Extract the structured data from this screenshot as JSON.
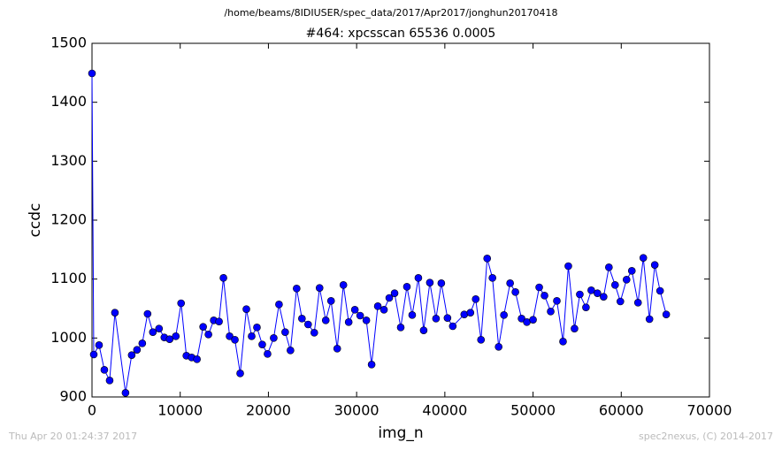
{
  "chart_data": {
    "type": "line",
    "suptitle": "/home/beams/8IDIUSER/spec_data/2017/Apr2017/jonghun20170418",
    "title": "#464: xpcsscan 65536 0.0005",
    "xlabel": "img_n",
    "ylabel": "ccdc",
    "footer_left": "Thu Apr 20 01:24:37 2017",
    "footer_right": "spec2nexus, (C) 2014-2017",
    "color": "#0000ff",
    "x": [
      0,
      200,
      800,
      1400,
      2000,
      2600,
      3800,
      4500,
      5100,
      5700,
      6300,
      6900,
      7600,
      8200,
      8800,
      9500,
      10100,
      10700,
      11300,
      11900,
      12600,
      13200,
      13800,
      14400,
      14900,
      15600,
      16200,
      16800,
      17500,
      18100,
      18700,
      19300,
      19900,
      20600,
      21200,
      21900,
      22500,
      23200,
      23800,
      24500,
      25200,
      25800,
      26500,
      27100,
      27800,
      28500,
      29100,
      29800,
      30400,
      31100,
      31700,
      32400,
      33100,
      33700,
      34300,
      35000,
      35700,
      36300,
      37000,
      37600,
      38300,
      39000,
      39600,
      40300,
      40900,
      42200,
      42900,
      43500,
      44100,
      44800,
      45400,
      46100,
      46700,
      47400,
      48000,
      48700,
      49300,
      50000,
      50700,
      51300,
      52000,
      52700,
      53400,
      54000,
      54700,
      55300,
      56000,
      56600,
      57300,
      58000,
      58600,
      59300,
      59900,
      60600,
      61200,
      61900,
      62500,
      63200,
      63800,
      64400,
      65100
    ],
    "values": [
      1449,
      972,
      988,
      946,
      928,
      1043,
      907,
      971,
      980,
      991,
      1041,
      1010,
      1016,
      1001,
      998,
      1003,
      1059,
      970,
      967,
      964,
      1019,
      1006,
      1030,
      1028,
      1102,
      1003,
      997,
      940,
      1049,
      1003,
      1018,
      989,
      973,
      1000,
      1057,
      1010,
      979,
      1084,
      1033,
      1023,
      1009,
      1085,
      1030,
      1063,
      982,
      1090,
      1027,
      1048,
      1038,
      1030,
      955,
      1054,
      1048,
      1068,
      1076,
      1018,
      1087,
      1039,
      1102,
      1013,
      1094,
      1033,
      1093,
      1034,
      1020,
      1040,
      1043,
      1066,
      997,
      1135,
      1102,
      985,
      1039,
      1093,
      1078,
      1033,
      1027,
      1031,
      1086,
      1072,
      1045,
      1063,
      994,
      1122,
      1016,
      1074,
      1052,
      1081,
      1076,
      1070,
      1120,
      1090,
      1062,
      1099,
      1114,
      1060,
      1136,
      1032,
      1124,
      1080,
      1040
    ],
    "xlim": [
      0,
      70000
    ],
    "xticks": [
      0,
      10000,
      20000,
      30000,
      40000,
      50000,
      60000,
      70000
    ],
    "ylim": [
      900,
      1500
    ],
    "yticks": [
      900,
      1000,
      1100,
      1200,
      1300,
      1400,
      1500
    ]
  }
}
